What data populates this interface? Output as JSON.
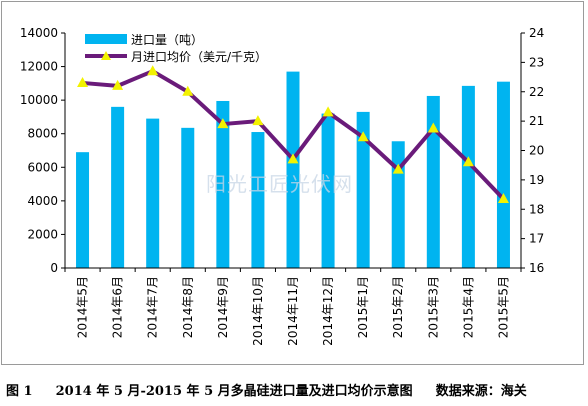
{
  "chart_data": {
    "type": "bar+line",
    "categories": [
      "2014年5月",
      "2014年6月",
      "2014年7月",
      "2014年8月",
      "2014年9月",
      "2014年10月",
      "2014年11月",
      "2014年12月",
      "2015年1月",
      "2015年2月",
      "2015年3月",
      "2015年4月",
      "2015年5月"
    ],
    "series": [
      {
        "name": "进口量（吨）",
        "type": "bar",
        "axis": "left",
        "values": [
          6900,
          9600,
          8900,
          8350,
          9950,
          8100,
          11700,
          9200,
          9300,
          7550,
          10250,
          10850,
          11100
        ]
      },
      {
        "name": "月进口均价（美元/千克）",
        "type": "line",
        "axis": "right",
        "values": [
          22.3,
          22.2,
          22.7,
          22.0,
          20.9,
          21.0,
          19.7,
          21.3,
          20.45,
          19.35,
          20.75,
          19.6,
          18.35
        ]
      }
    ],
    "y_left": {
      "min": 0,
      "max": 14000,
      "ticks": [
        0,
        2000,
        4000,
        6000,
        8000,
        10000,
        12000,
        14000
      ]
    },
    "y_right": {
      "min": 16,
      "max": 24,
      "ticks": [
        16,
        17,
        18,
        19,
        20,
        21,
        22,
        23,
        24
      ]
    },
    "legend_position": "top-left",
    "grid": false,
    "colors": {
      "bar": "#00b4f0",
      "line": "#6a1b7a",
      "marker": "#f2f200"
    }
  },
  "watermark": "阳光工匠光伏网",
  "caption": {
    "figure_no": "图 1",
    "title": "2014 年 5 月-2015 年 5 月多晶硅进口量及进口均价示意图",
    "source": "数据来源：海关"
  }
}
